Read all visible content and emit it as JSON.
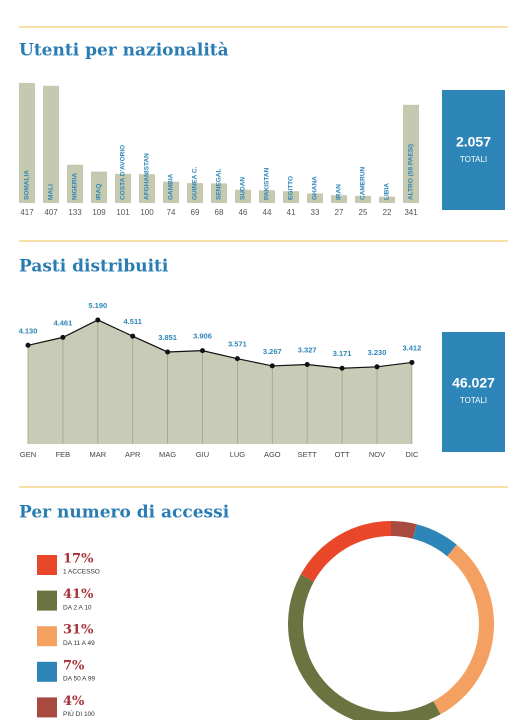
{
  "chart_data": [
    {
      "type": "bar",
      "title": "Utenti per nazionalità",
      "categories": [
        "SOMALIA",
        "MALI",
        "NIGERIA",
        "IRAQ",
        "COSTA D'AVORIO",
        "AFGHANISTAN",
        "GAMBIA",
        "GUINEA C.",
        "SENEGAL",
        "SUDAN",
        "PAKISTAN",
        "EGITTO",
        "GHANA",
        "IRAN",
        "CAMERUN",
        "LIBIA",
        "ALTRO (58 PAESI)"
      ],
      "values": [
        417,
        407,
        133,
        109,
        101,
        100,
        74,
        69,
        68,
        46,
        44,
        41,
        33,
        27,
        25,
        22,
        341
      ],
      "color": "#c5c9b0",
      "total": "2.057",
      "total_label": "TOTALI"
    },
    {
      "type": "line",
      "title": "Pasti distribuiti",
      "categories": [
        "GEN",
        "FEB",
        "MAR",
        "APR",
        "MAG",
        "GIU",
        "LUG",
        "AGO",
        "SETT",
        "OTT",
        "NOV",
        "DIC"
      ],
      "values": [
        4130,
        4461,
        5190,
        4511,
        3851,
        3906,
        3571,
        3267,
        3327,
        3171,
        3230,
        3412
      ],
      "value_labels": [
        "4.130",
        "4.461",
        "5.190",
        "4.511",
        "3.851",
        "3.906",
        "3.571",
        "3.267",
        "3.327",
        "3.171",
        "3.230",
        "3.412"
      ],
      "color": "#c8ccb6",
      "total": "46.027",
      "total_label": "TOTALI"
    },
    {
      "type": "pie",
      "title": "Per numero di accessi",
      "categories": [
        "1 ACCESSO",
        "DA 2 A 10",
        "DA 11 A 49",
        "DA 50 A 99",
        "PIÙ DI 100"
      ],
      "values": [
        17,
        41,
        31,
        7,
        4
      ],
      "value_labels": [
        "17%",
        "41%",
        "31%",
        "7%",
        "4%"
      ],
      "colors": [
        "#e8472a",
        "#6b7340",
        "#f4a060",
        "#2e86b8",
        "#a84a40"
      ]
    }
  ]
}
